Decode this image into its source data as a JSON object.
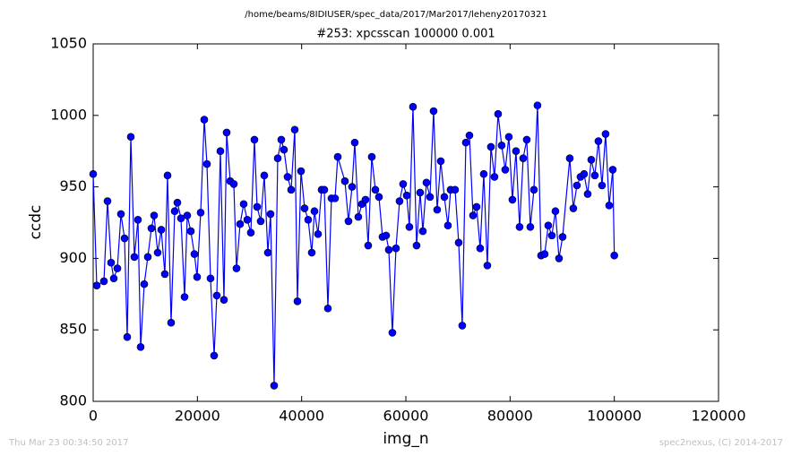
{
  "chart_data": {
    "type": "line",
    "suptitle": "/home/beams/8IDIUSER/spec_data/2017/Mar2017/leheny20170321",
    "title": "#253: xpcsscan 100000 0.001",
    "xlabel": "img_n",
    "ylabel": "ccdc",
    "footer_left": "Thu Mar 23 00:34:50 2017",
    "footer_right": "spec2nexus, (C) 2014-2017",
    "xlim": [
      0,
      120000
    ],
    "ylim": [
      800,
      1050
    ],
    "xticks": [
      0,
      20000,
      40000,
      60000,
      80000,
      100000,
      120000
    ],
    "yticks": [
      800,
      850,
      900,
      950,
      1000,
      1050
    ],
    "x": [
      0,
      688,
      2063,
      2750,
      3438,
      3954,
      4641,
      5329,
      6017,
      6532,
      7220,
      7907,
      8595,
      9111,
      9798,
      10486,
      11174,
      11689,
      12377,
      13064,
      13752,
      14268,
      14955,
      15643,
      16159,
      16846,
      17534,
      18050,
      18737,
      19425,
      19940,
      20628,
      21316,
      21831,
      22519,
      23207,
      23722,
      24410,
      25097,
      25613,
      26301,
      26988,
      27504,
      28192,
      28879,
      29567,
      30254,
      30942,
      31458,
      32145,
      32833,
      33521,
      34036,
      34724,
      35411,
      36099,
      36615,
      37302,
      37990,
      38678,
      39193,
      39881,
      40568,
      41256,
      41944,
      42459,
      43147,
      43834,
      44350,
      45038,
      45725,
      46413,
      46929,
      48304,
      48992,
      49679,
      50195,
      50882,
      51570,
      52258,
      52773,
      53461,
      54149,
      54836,
      55524,
      56211,
      56727,
      57415,
      58102,
      58790,
      59477,
      60165,
      60681,
      61368,
      62056,
      62743,
      63259,
      63947,
      64634,
      65322,
      66010,
      66697,
      67385,
      68072,
      68588,
      69448,
      70135,
      70823,
      71510,
      72198,
      72886,
      73573,
      74261,
      74948,
      75636,
      76324,
      77011,
      77699,
      78386,
      79074,
      79762,
      80449,
      81137,
      81824,
      82512,
      83200,
      83887,
      84575,
      85262,
      85950,
      86638,
      87325,
      88013,
      88700,
      89388,
      90076,
      91451,
      92138,
      92826,
      93514,
      94201,
      94889,
      95576,
      96264,
      96952,
      97639,
      98327,
      99014,
      99702,
      100000
    ],
    "series": [
      {
        "name": "ccdc",
        "color": "#0000ff",
        "values": [
          959,
          881,
          884,
          940,
          897,
          886,
          893,
          931,
          914,
          845,
          985,
          901,
          927,
          838,
          882,
          901,
          921,
          930,
          904,
          920,
          889,
          958,
          855,
          933,
          939,
          928,
          873,
          930,
          919,
          903,
          887,
          932,
          997,
          966,
          886,
          832,
          874,
          975,
          871,
          988,
          954,
          952,
          893,
          924,
          938,
          927,
          918,
          983,
          936,
          926,
          958,
          904,
          931,
          811,
          970,
          983,
          976,
          957,
          948,
          990,
          870,
          961,
          935,
          927,
          904,
          933,
          917,
          948,
          948,
          865,
          942,
          942,
          971,
          954,
          926,
          950,
          981,
          929,
          938,
          941,
          909,
          971,
          948,
          943,
          915,
          916,
          906,
          848,
          907,
          940,
          952,
          944,
          922,
          1006,
          909,
          946,
          919,
          953,
          943,
          1003,
          934,
          968,
          943,
          923,
          948,
          948,
          911,
          853,
          981,
          986,
          930,
          936,
          907,
          959,
          895,
          978,
          957,
          1001,
          979,
          962,
          985,
          941,
          975,
          922,
          970,
          983,
          922,
          948,
          1007,
          902,
          903,
          923,
          916,
          933,
          900,
          915,
          970,
          935,
          951,
          957,
          959,
          945,
          969,
          958,
          982,
          951,
          987,
          937,
          962,
          902
        ]
      }
    ]
  }
}
